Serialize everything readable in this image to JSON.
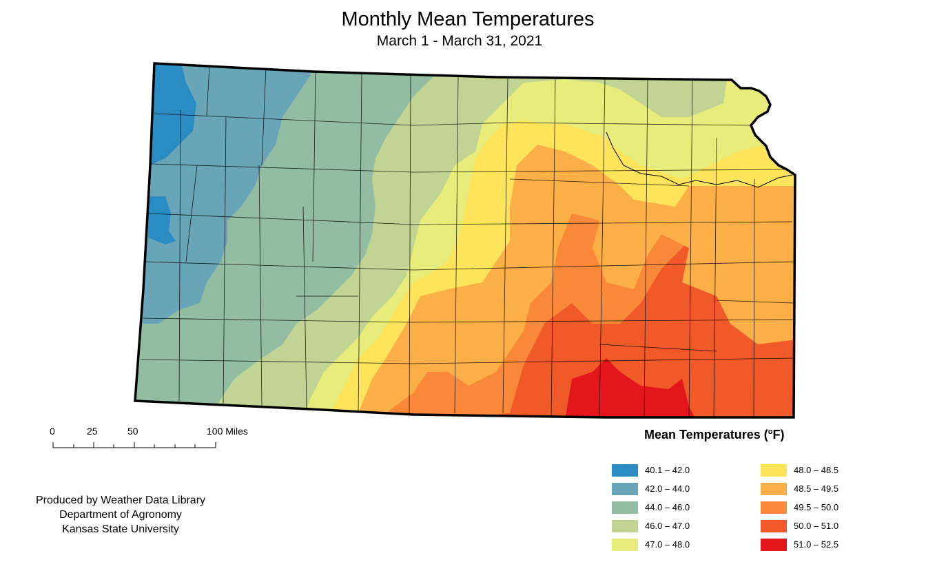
{
  "title": "Monthly Mean Temperatures",
  "subtitle": "March 1 - March 31, 2021",
  "scale": {
    "ticks": [
      "0",
      "25",
      "50",
      "100 Miles"
    ]
  },
  "credit": {
    "line1": "Produced by Weather Data Library",
    "line2": "Department of Agronomy",
    "line3": "Kansas State University"
  },
  "legend": {
    "title_prefix": "Mean Temperatures (",
    "title_degree": "o",
    "title_suffix": "F)",
    "classes": [
      {
        "label": "40.1 – 42.0",
        "color": "#2b8cc4"
      },
      {
        "label": "42.0 – 44.0",
        "color": "#68a5b8"
      },
      {
        "label": "44.0 – 46.0",
        "color": "#93bda2"
      },
      {
        "label": "46.0 – 47.0",
        "color": "#c1d494"
      },
      {
        "label": "47.0 – 48.0",
        "color": "#e7ec7a"
      },
      {
        "label": "48.0 – 48.5",
        "color": "#fde45a"
      },
      {
        "label": "48.5 – 49.5",
        "color": "#fdaf47"
      },
      {
        "label": "49.5 – 50.0",
        "color": "#f98838"
      },
      {
        "label": "50.0 – 51.0",
        "color": "#f05a28"
      },
      {
        "label": "51.0 – 52.5",
        "color": "#e5161b"
      }
    ]
  }
}
